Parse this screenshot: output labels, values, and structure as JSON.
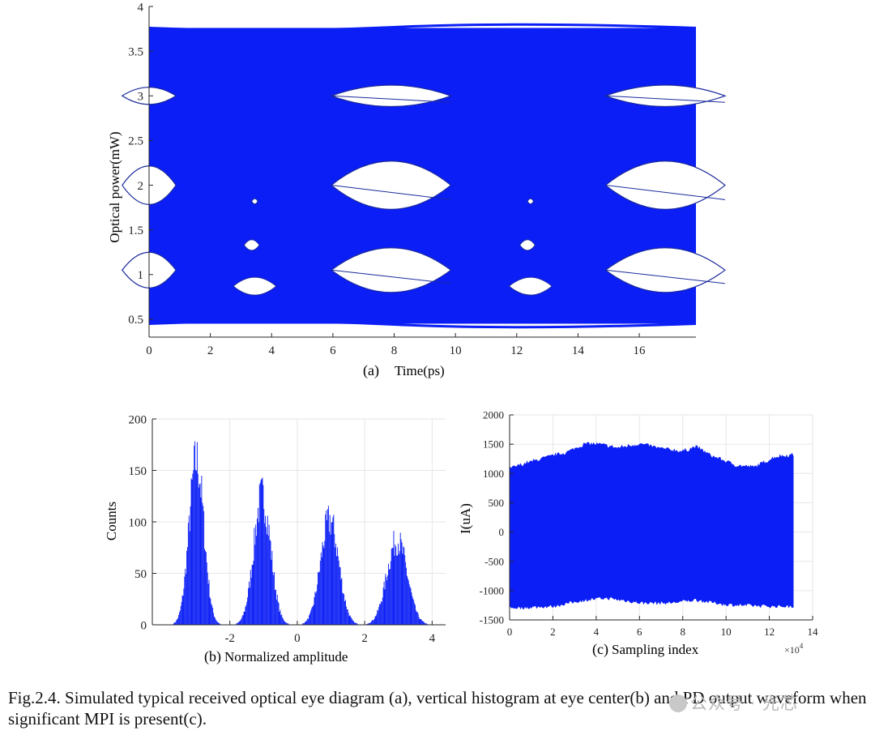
{
  "colors": {
    "trace": "#0b1ef5",
    "axis": "#262626",
    "grid": "#e6e6e6"
  },
  "chart_data": [
    {
      "id": "a",
      "type": "eye-diagram",
      "xlabel": "Time(ps)",
      "panel_label": "(a)",
      "ylabel": "Optical power(mW)",
      "xlim": [
        0,
        17.85
      ],
      "ylim": [
        0.3,
        4
      ],
      "xticks": [
        0,
        2,
        4,
        6,
        8,
        10,
        12,
        14,
        16
      ],
      "yticks": [
        0.5,
        1,
        1.5,
        2,
        2.5,
        3,
        3.5,
        4
      ],
      "signal_band": [
        0.45,
        3.76
      ],
      "eye_centers_ps": [
        7.9,
        16.85
      ],
      "eye_half_width_ps": 1.95,
      "eyes": [
        {
          "center": 3.0,
          "half_height": 0.12
        },
        {
          "center": 2.0,
          "half_height": 0.27
        },
        {
          "center": 1.05,
          "half_height": 0.25
        }
      ],
      "edge_eyes_at": 0,
      "small_openings": [
        {
          "t": 3.45,
          "p": 1.82,
          "w": 0.2,
          "h": 0.03
        },
        {
          "t": 3.35,
          "p": 1.33,
          "w": 0.5,
          "h": 0.06
        },
        {
          "t": 3.45,
          "p": 0.87,
          "w": 1.4,
          "h": 0.1
        },
        {
          "t": 12.45,
          "p": 1.82,
          "w": 0.2,
          "h": 0.03
        },
        {
          "t": 12.35,
          "p": 1.33,
          "w": 0.5,
          "h": 0.06
        },
        {
          "t": 12.45,
          "p": 0.87,
          "w": 1.4,
          "h": 0.1
        }
      ]
    },
    {
      "id": "b",
      "type": "histogram",
      "xlabel": "Normalized amplitude",
      "panel_label": "(b)",
      "ylabel": "Counts",
      "xlim": [
        -4.3,
        4.4
      ],
      "ylim": [
        0,
        200
      ],
      "xticks": [
        -2,
        0,
        2,
        4
      ],
      "yticks": [
        0,
        50,
        100,
        150,
        200
      ],
      "peaks": [
        {
          "center": -3.0,
          "sigma": 0.22,
          "height": 163
        },
        {
          "center": -1.05,
          "sigma": 0.25,
          "height": 128
        },
        {
          "center": 0.95,
          "sigma": 0.27,
          "height": 104
        },
        {
          "center": 2.95,
          "sigma": 0.3,
          "height": 84
        }
      ]
    },
    {
      "id": "c",
      "type": "waveform",
      "xlabel": "Sampling index",
      "panel_label": "(c)",
      "ylabel": "I(uA)",
      "x_scale_label": "×10",
      "x_scale_exponent": "4",
      "xlim": [
        0,
        14
      ],
      "ylim": [
        -1500,
        2000
      ],
      "xticks": [
        0,
        2,
        4,
        6,
        8,
        10,
        12,
        14
      ],
      "yticks": [
        -1500,
        -1000,
        -500,
        0,
        500,
        1000,
        1500,
        2000
      ],
      "data_end": 13.1,
      "upper_envelope": [
        [
          0,
          1080
        ],
        [
          1.5,
          1250
        ],
        [
          2.6,
          1350
        ],
        [
          3.5,
          1500
        ],
        [
          4.2,
          1490
        ],
        [
          5.0,
          1430
        ],
        [
          6.0,
          1500
        ],
        [
          7.0,
          1420
        ],
        [
          8.0,
          1370
        ],
        [
          8.6,
          1450
        ],
        [
          9.3,
          1300
        ],
        [
          10.5,
          1130
        ],
        [
          11.3,
          1100
        ],
        [
          12.3,
          1280
        ],
        [
          13.1,
          1310
        ]
      ],
      "lower_envelope": [
        [
          0,
          -1290
        ],
        [
          2.0,
          -1260
        ],
        [
          3.5,
          -1150
        ],
        [
          4.5,
          -1120
        ],
        [
          6.0,
          -1200
        ],
        [
          7.5,
          -1200
        ],
        [
          8.6,
          -1150
        ],
        [
          10.0,
          -1230
        ],
        [
          12.0,
          -1260
        ],
        [
          13.1,
          -1260
        ]
      ]
    }
  ],
  "caption": {
    "text": "Fig.2.4. Simulated typical received optical eye diagram (a), vertical histogram at eye center(b) and PD output waveform when significant MPI is present(c)."
  },
  "watermark": {
    "text": "公众号 · 光芯"
  }
}
